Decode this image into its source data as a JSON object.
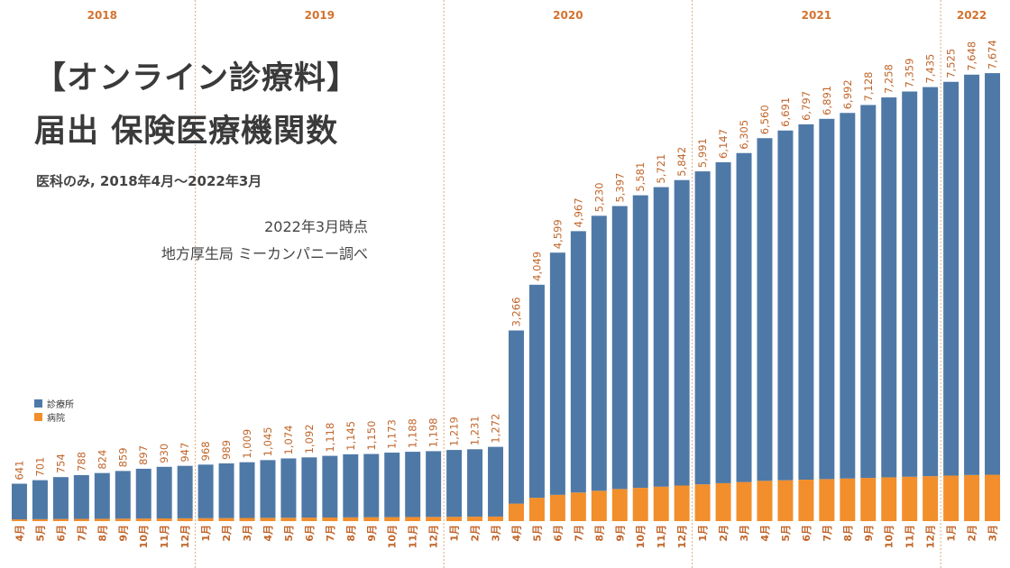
{
  "colors": {
    "clinic": "#4E79A7",
    "hospital": "#F28E2B",
    "year_label": "#D4722E",
    "value_label": "#C0652A",
    "month_label": "#C0652A",
    "divider": "#E0A77A"
  },
  "title": {
    "line1": "【オンライン診療料】",
    "line2": "届出 保険医療機関数",
    "subtitle": "医科のみ, 2018年4月～2022年3月",
    "note1": "2022年3月時点",
    "note2": "地方厚生局 ミーカンパニー調べ"
  },
  "chart_data": {
    "type": "bar",
    "stacked": true,
    "title": "【オンライン診療料】届出 保険医療機関数",
    "subtitle": "医科のみ, 2018年4月～2022年3月",
    "years": [
      {
        "label": "2018",
        "count": 9
      },
      {
        "label": "2019",
        "count": 12
      },
      {
        "label": "2020",
        "count": 12
      },
      {
        "label": "2021",
        "count": 12
      },
      {
        "label": "2022",
        "count": 3
      }
    ],
    "categories": [
      "4月",
      "5月",
      "6月",
      "7月",
      "8月",
      "9月",
      "10月",
      "11月",
      "12月",
      "1月",
      "2月",
      "3月",
      "4月",
      "5月",
      "6月",
      "7月",
      "8月",
      "9月",
      "10月",
      "11月",
      "12月",
      "1月",
      "2月",
      "3月",
      "4月",
      "5月",
      "6月",
      "7月",
      "8月",
      "9月",
      "10月",
      "11月",
      "12月",
      "1月",
      "2月",
      "3月",
      "4月",
      "5月",
      "6月",
      "7月",
      "8月",
      "9月",
      "10月",
      "11月",
      "12月",
      "1月",
      "2月",
      "3月"
    ],
    "total_labels": [
      "641",
      "701",
      "754",
      "788",
      "824",
      "859",
      "897",
      "930",
      "947",
      "968",
      "989",
      "1,009",
      "1,045",
      "1,074",
      "1,092",
      "1,118",
      "1,145",
      "1,150",
      "1,173",
      "1,188",
      "1,198",
      "1,219",
      "1,231",
      "1,272",
      "3,266",
      "4,049",
      "4,599",
      "4,967",
      "5,230",
      "5,397",
      "5,581",
      "5,721",
      "5,842",
      "5,991",
      "6,147",
      "6,305",
      "6,560",
      "6,691",
      "6,797",
      "6,891",
      "6,992",
      "7,128",
      "7,258",
      "7,359",
      "7,435",
      "7,525",
      "7,648",
      "7,674"
    ],
    "series": [
      {
        "name": "病院",
        "values": [
          30,
          33,
          36,
          38,
          40,
          42,
          44,
          46,
          48,
          50,
          52,
          54,
          56,
          58,
          60,
          62,
          64,
          66,
          68,
          70,
          72,
          74,
          76,
          78,
          300,
          400,
          450,
          490,
          520,
          550,
          570,
          590,
          610,
          630,
          650,
          670,
          690,
          700,
          710,
          720,
          730,
          740,
          750,
          760,
          770,
          780,
          790,
          795
        ]
      },
      {
        "name": "診療所",
        "values": [
          611,
          668,
          718,
          750,
          784,
          817,
          853,
          884,
          899,
          918,
          937,
          955,
          989,
          1016,
          1032,
          1056,
          1081,
          1084,
          1105,
          1118,
          1126,
          1145,
          1155,
          1194,
          2966,
          3649,
          4149,
          4477,
          4710,
          4847,
          5011,
          5131,
          5232,
          5361,
          5497,
          5635,
          5870,
          5991,
          6087,
          6171,
          6262,
          6388,
          6508,
          6599,
          6665,
          6745,
          6858,
          6879
        ]
      }
    ],
    "legend": [
      "診療所",
      "病院"
    ],
    "ylim": [
      0,
      8000
    ],
    "xlabel": "",
    "ylabel": ""
  }
}
